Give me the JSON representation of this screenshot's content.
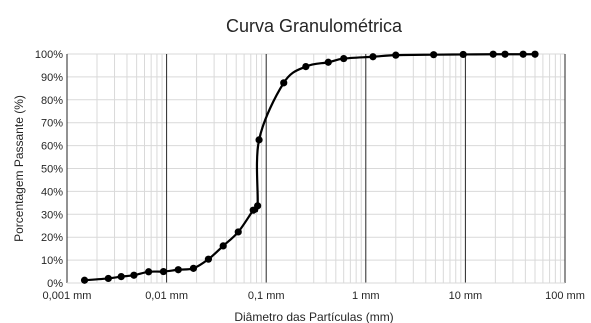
{
  "chart_data": {
    "type": "scatter",
    "title": "Curva Granulométrica",
    "xlabel": "Diâmetro das Partículas (mm)",
    "ylabel": "Porcentagem Passante (%)",
    "x_scale": "log",
    "xlim": [
      0.001,
      100
    ],
    "ylim": [
      0,
      100
    ],
    "x_ticks": [
      0.001,
      0.01,
      0.1,
      1,
      10,
      100
    ],
    "x_tick_labels": [
      "0,001 mm",
      "0,01 mm",
      "0,1 mm",
      "1 mm",
      "10 mm",
      "100 mm"
    ],
    "y_ticks": [
      0,
      10,
      20,
      30,
      40,
      50,
      60,
      70,
      80,
      90,
      100
    ],
    "y_tick_labels": [
      "0%",
      "10%",
      "20%",
      "30%",
      "40%",
      "50%",
      "60%",
      "70%",
      "80%",
      "90%",
      "100%"
    ],
    "grid": true,
    "legend": "none",
    "series": [
      {
        "x": [
          0.0015,
          0.0026,
          0.0035,
          0.0047,
          0.0066,
          0.0093,
          0.0131,
          0.0186,
          0.0263,
          0.037,
          0.0524,
          0.0741,
          0.082,
          0.0848,
          0.15,
          0.25,
          0.42,
          0.6,
          1.18,
          2.0,
          4.8,
          9.5,
          19,
          25,
          38,
          50
        ],
        "y": [
          1.2,
          2.0,
          2.8,
          3.4,
          4.9,
          5.0,
          5.8,
          6.4,
          10.4,
          16.2,
          22.3,
          31.8,
          33.7,
          62.5,
          87.4,
          94.5,
          96.4,
          98.0,
          98.8,
          99.5,
          99.7,
          99.8,
          99.9,
          99.9,
          99.9,
          99.9
        ],
        "color": "#000000"
      }
    ]
  }
}
